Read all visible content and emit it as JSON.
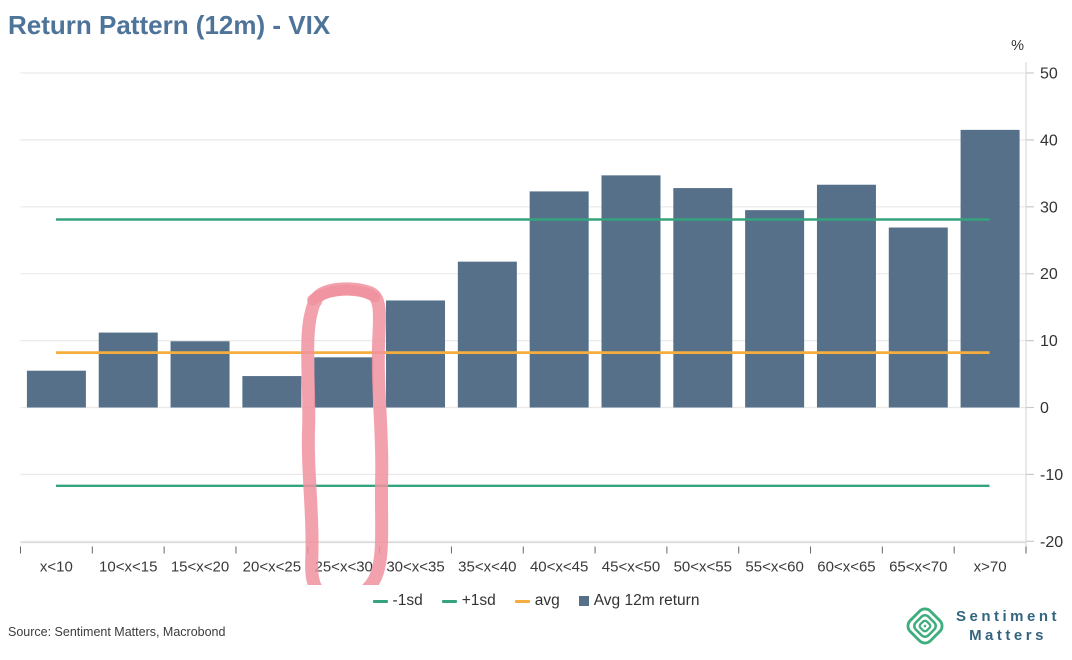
{
  "title": "Return Pattern (12m) - VIX",
  "source": "Source: Sentiment Matters, Macrobond",
  "logo": {
    "line1": "Sentiment",
    "line2": "Matters"
  },
  "colors": {
    "title": "#4e7499",
    "bar": "#56708A",
    "sd_line": "#35A47C",
    "avg_line": "#F5AE3E",
    "annotation": "#F0929F",
    "grid": "#e9e9e9",
    "axis": "#d9d9d9",
    "tick": "#666666",
    "axis_text": "#333333",
    "logo_green": "#3FAE7E",
    "logo_text": "#34657f"
  },
  "legend": {
    "items": [
      {
        "label": "-1sd",
        "type": "line",
        "color": "#35A47C"
      },
      {
        "label": "+1sd",
        "type": "line",
        "color": "#35A47C"
      },
      {
        "label": "avg",
        "type": "line",
        "color": "#F5AE3E"
      },
      {
        "label": "Avg 12m return",
        "type": "square",
        "color": "#56708A"
      }
    ]
  },
  "chart_data": {
    "type": "bar",
    "title": "Return Pattern (12m) - VIX",
    "xlabel": "",
    "ylabel": "%",
    "categories": [
      "x<10",
      "10<x<15",
      "15<x<20",
      "20<x<25",
      "25<x<30",
      "30<x<35",
      "35<x<40",
      "40<x<45",
      "45<x<50",
      "50<x<55",
      "55<x<60",
      "60<x<65",
      "65<x<70",
      "x>70"
    ],
    "values": [
      5.5,
      11.2,
      9.9,
      4.7,
      7.5,
      16.0,
      21.8,
      32.3,
      34.7,
      32.8,
      29.5,
      33.3,
      26.9,
      41.5
    ],
    "ylim": [
      -20,
      50
    ],
    "yticks": [
      -20,
      -10,
      0,
      10,
      20,
      30,
      40,
      50
    ],
    "grid": true,
    "legend_position": "bottom",
    "reference_lines": [
      {
        "name": "-1sd",
        "value": -11.7,
        "color": "#35A47C"
      },
      {
        "name": "+1sd",
        "value": 28.1,
        "color": "#35A47C"
      },
      {
        "name": "avg",
        "value": 8.2,
        "color": "#F5AE3E"
      }
    ],
    "annotation": {
      "type": "hand-drawn-circle",
      "target_category": "25<x<30",
      "color": "#F0929F",
      "note": "highlights the 25<x<30 VIX bucket bar and its axis label"
    }
  }
}
